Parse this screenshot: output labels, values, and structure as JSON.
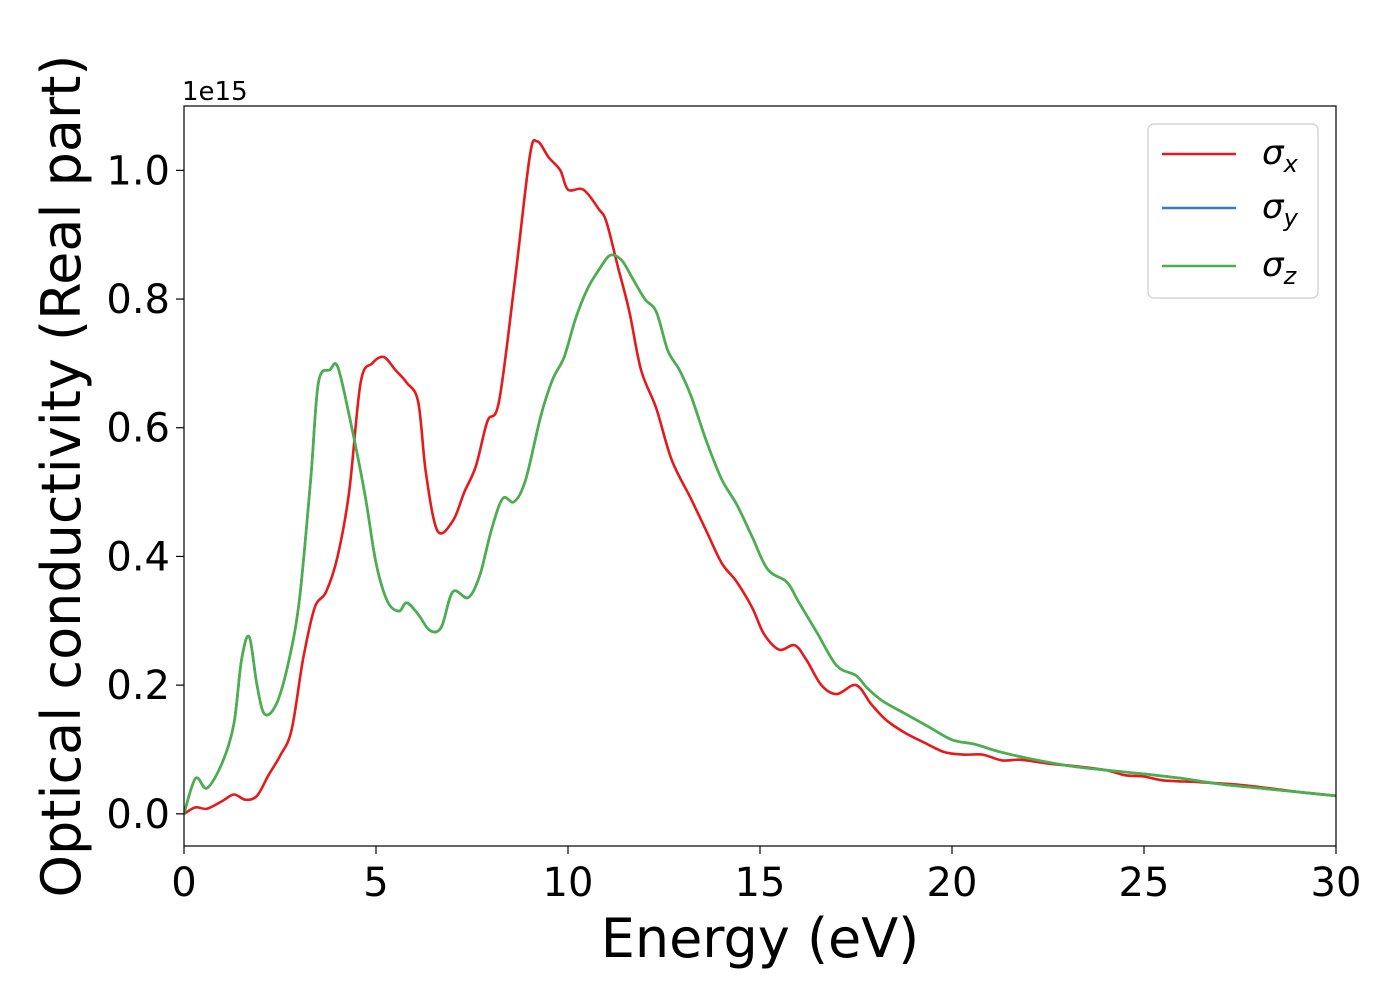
{
  "chart_data": {
    "type": "line",
    "xlabel": "Energy (eV)",
    "ylabel": "Optical conductivity (Real part)",
    "y_offset_text": "1e15",
    "xlim": [
      0,
      30
    ],
    "ylim": [
      -0.05,
      1.1
    ],
    "y_scale_factor": "1e15",
    "x_ticks": [
      "0",
      "5",
      "10",
      "15",
      "20",
      "25",
      "30"
    ],
    "x_tick_values": [
      0,
      5,
      10,
      15,
      20,
      25,
      30
    ],
    "y_ticks": [
      "0.0",
      "0.2",
      "0.4",
      "0.6",
      "0.8",
      "1.0"
    ],
    "y_tick_values": [
      0.0,
      0.2,
      0.4,
      0.6,
      0.8,
      1.0
    ],
    "grid": false,
    "legend_position": "top-right",
    "series": [
      {
        "name": "σ",
        "subscript": "x",
        "color": "#e41a1c",
        "points": [
          [
            0,
            0
          ],
          [
            0.3,
            0.01
          ],
          [
            0.6,
            0.008
          ],
          [
            1.0,
            0.02
          ],
          [
            1.3,
            0.03
          ],
          [
            1.6,
            0.022
          ],
          [
            1.9,
            0.028
          ],
          [
            2.2,
            0.06
          ],
          [
            2.5,
            0.09
          ],
          [
            2.8,
            0.13
          ],
          [
            3.1,
            0.24
          ],
          [
            3.4,
            0.32
          ],
          [
            3.7,
            0.345
          ],
          [
            4.0,
            0.4
          ],
          [
            4.3,
            0.5
          ],
          [
            4.6,
            0.67
          ],
          [
            4.9,
            0.7
          ],
          [
            5.2,
            0.71
          ],
          [
            5.5,
            0.69
          ],
          [
            5.8,
            0.67
          ],
          [
            6.1,
            0.64
          ],
          [
            6.3,
            0.53
          ],
          [
            6.6,
            0.44
          ],
          [
            7.0,
            0.455
          ],
          [
            7.3,
            0.5
          ],
          [
            7.6,
            0.54
          ],
          [
            7.9,
            0.61
          ],
          [
            8.2,
            0.64
          ],
          [
            8.6,
            0.82
          ],
          [
            9.0,
            1.02
          ],
          [
            9.2,
            1.045
          ],
          [
            9.5,
            1.02
          ],
          [
            9.8,
            1.0
          ],
          [
            10.0,
            0.97
          ],
          [
            10.4,
            0.97
          ],
          [
            10.8,
            0.94
          ],
          [
            11.0,
            0.92
          ],
          [
            11.3,
            0.85
          ],
          [
            11.6,
            0.78
          ],
          [
            11.9,
            0.69
          ],
          [
            12.3,
            0.63
          ],
          [
            12.7,
            0.55
          ],
          [
            13.2,
            0.49
          ],
          [
            13.6,
            0.44
          ],
          [
            14.0,
            0.39
          ],
          [
            14.4,
            0.36
          ],
          [
            14.8,
            0.32
          ],
          [
            15.1,
            0.28
          ],
          [
            15.5,
            0.255
          ],
          [
            15.9,
            0.262
          ],
          [
            16.2,
            0.24
          ],
          [
            16.6,
            0.2
          ],
          [
            17.0,
            0.186
          ],
          [
            17.5,
            0.2
          ],
          [
            17.9,
            0.17
          ],
          [
            18.3,
            0.145
          ],
          [
            18.8,
            0.125
          ],
          [
            19.3,
            0.11
          ],
          [
            19.8,
            0.096
          ],
          [
            20.3,
            0.092
          ],
          [
            20.8,
            0.092
          ],
          [
            21.3,
            0.083
          ],
          [
            21.8,
            0.084
          ],
          [
            22.5,
            0.078
          ],
          [
            23.2,
            0.074
          ],
          [
            24.0,
            0.068
          ],
          [
            24.5,
            0.06
          ],
          [
            25.0,
            0.058
          ],
          [
            25.5,
            0.052
          ],
          [
            26.5,
            0.049
          ],
          [
            27.5,
            0.045
          ],
          [
            28.5,
            0.038
          ],
          [
            29.3,
            0.032
          ],
          [
            30,
            0.028
          ]
        ]
      },
      {
        "name": "σ",
        "subscript": "y",
        "color": "#377eb8",
        "points": [
          [
            0,
            0
          ],
          [
            0.3,
            0.055
          ],
          [
            0.6,
            0.04
          ],
          [
            1.0,
            0.08
          ],
          [
            1.3,
            0.14
          ],
          [
            1.5,
            0.24
          ],
          [
            1.7,
            0.275
          ],
          [
            1.9,
            0.2
          ],
          [
            2.1,
            0.155
          ],
          [
            2.4,
            0.17
          ],
          [
            2.7,
            0.23
          ],
          [
            3.0,
            0.33
          ],
          [
            3.3,
            0.52
          ],
          [
            3.5,
            0.67
          ],
          [
            3.8,
            0.69
          ],
          [
            4.0,
            0.695
          ],
          [
            4.3,
            0.62
          ],
          [
            4.7,
            0.5
          ],
          [
            5.0,
            0.39
          ],
          [
            5.3,
            0.33
          ],
          [
            5.6,
            0.315
          ],
          [
            5.8,
            0.328
          ],
          [
            6.1,
            0.31
          ],
          [
            6.4,
            0.285
          ],
          [
            6.7,
            0.29
          ],
          [
            7.0,
            0.345
          ],
          [
            7.4,
            0.336
          ],
          [
            7.7,
            0.37
          ],
          [
            8.0,
            0.44
          ],
          [
            8.3,
            0.49
          ],
          [
            8.6,
            0.485
          ],
          [
            8.9,
            0.52
          ],
          [
            9.3,
            0.62
          ],
          [
            9.6,
            0.675
          ],
          [
            9.9,
            0.71
          ],
          [
            10.2,
            0.77
          ],
          [
            10.5,
            0.815
          ],
          [
            10.8,
            0.845
          ],
          [
            11.1,
            0.868
          ],
          [
            11.4,
            0.86
          ],
          [
            11.7,
            0.83
          ],
          [
            12.0,
            0.8
          ],
          [
            12.3,
            0.78
          ],
          [
            12.6,
            0.72
          ],
          [
            12.9,
            0.69
          ],
          [
            13.2,
            0.65
          ],
          [
            13.6,
            0.58
          ],
          [
            14.0,
            0.52
          ],
          [
            14.4,
            0.48
          ],
          [
            14.8,
            0.43
          ],
          [
            15.2,
            0.38
          ],
          [
            15.7,
            0.36
          ],
          [
            16.0,
            0.33
          ],
          [
            16.5,
            0.28
          ],
          [
            17.0,
            0.23
          ],
          [
            17.5,
            0.215
          ],
          [
            17.8,
            0.195
          ],
          [
            18.2,
            0.175
          ],
          [
            18.8,
            0.155
          ],
          [
            19.4,
            0.135
          ],
          [
            20.0,
            0.115
          ],
          [
            20.6,
            0.108
          ],
          [
            21.2,
            0.097
          ],
          [
            22.0,
            0.086
          ],
          [
            23.0,
            0.075
          ],
          [
            24.0,
            0.068
          ],
          [
            25.0,
            0.062
          ],
          [
            26.0,
            0.055
          ],
          [
            27.0,
            0.046
          ],
          [
            28.0,
            0.04
          ],
          [
            29.0,
            0.034
          ],
          [
            30,
            0.028
          ]
        ]
      },
      {
        "name": "σ",
        "subscript": "z",
        "color": "#4daf4a",
        "points": [
          [
            0,
            0
          ],
          [
            0.3,
            0.055
          ],
          [
            0.6,
            0.04
          ],
          [
            1.0,
            0.08
          ],
          [
            1.3,
            0.14
          ],
          [
            1.5,
            0.24
          ],
          [
            1.7,
            0.275
          ],
          [
            1.9,
            0.2
          ],
          [
            2.1,
            0.155
          ],
          [
            2.4,
            0.17
          ],
          [
            2.7,
            0.23
          ],
          [
            3.0,
            0.33
          ],
          [
            3.3,
            0.52
          ],
          [
            3.5,
            0.67
          ],
          [
            3.8,
            0.69
          ],
          [
            4.0,
            0.695
          ],
          [
            4.3,
            0.62
          ],
          [
            4.7,
            0.5
          ],
          [
            5.0,
            0.39
          ],
          [
            5.3,
            0.33
          ],
          [
            5.6,
            0.315
          ],
          [
            5.8,
            0.328
          ],
          [
            6.1,
            0.31
          ],
          [
            6.4,
            0.285
          ],
          [
            6.7,
            0.29
          ],
          [
            7.0,
            0.345
          ],
          [
            7.4,
            0.336
          ],
          [
            7.7,
            0.37
          ],
          [
            8.0,
            0.44
          ],
          [
            8.3,
            0.49
          ],
          [
            8.6,
            0.485
          ],
          [
            8.9,
            0.52
          ],
          [
            9.3,
            0.62
          ],
          [
            9.6,
            0.675
          ],
          [
            9.9,
            0.71
          ],
          [
            10.2,
            0.77
          ],
          [
            10.5,
            0.815
          ],
          [
            10.8,
            0.845
          ],
          [
            11.1,
            0.868
          ],
          [
            11.4,
            0.86
          ],
          [
            11.7,
            0.83
          ],
          [
            12.0,
            0.8
          ],
          [
            12.3,
            0.78
          ],
          [
            12.6,
            0.72
          ],
          [
            12.9,
            0.69
          ],
          [
            13.2,
            0.65
          ],
          [
            13.6,
            0.58
          ],
          [
            14.0,
            0.52
          ],
          [
            14.4,
            0.48
          ],
          [
            14.8,
            0.43
          ],
          [
            15.2,
            0.38
          ],
          [
            15.7,
            0.36
          ],
          [
            16.0,
            0.33
          ],
          [
            16.5,
            0.28
          ],
          [
            17.0,
            0.23
          ],
          [
            17.5,
            0.215
          ],
          [
            17.8,
            0.195
          ],
          [
            18.2,
            0.175
          ],
          [
            18.8,
            0.155
          ],
          [
            19.4,
            0.135
          ],
          [
            20.0,
            0.115
          ],
          [
            20.6,
            0.108
          ],
          [
            21.2,
            0.097
          ],
          [
            22.0,
            0.086
          ],
          [
            23.0,
            0.075
          ],
          [
            24.0,
            0.068
          ],
          [
            25.0,
            0.062
          ],
          [
            26.0,
            0.055
          ],
          [
            27.0,
            0.046
          ],
          [
            28.0,
            0.04
          ],
          [
            29.0,
            0.034
          ],
          [
            30,
            0.028
          ]
        ]
      }
    ]
  }
}
